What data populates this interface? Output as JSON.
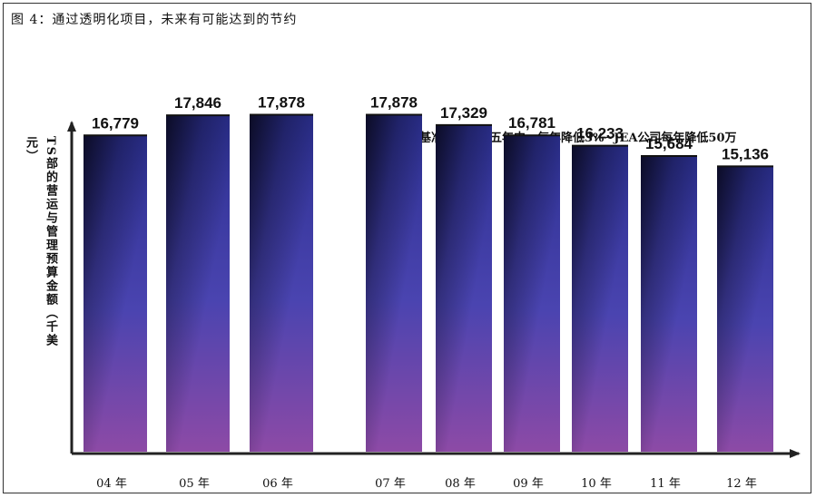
{
  "figure": {
    "title": "图 4：通过透明化项目，未来有可能达到的节约",
    "annotation": "基准要求：在五年中，每年降低3%~JEA公司每年降低50万"
  },
  "chart_data": {
    "type": "bar",
    "title": "图 4：通过透明化项目，未来有可能达到的节约",
    "ylabel": "TS部的营运与管理预算金额（千美元）",
    "xlabel": "",
    "categories": [
      "04 年",
      "05 年",
      "06 年",
      "07 年",
      "08 年",
      "09 年",
      "10 年",
      "11 年",
      "12 年"
    ],
    "value_labels": [
      "16,779",
      "17,846",
      "17,878",
      "17,878",
      "17,329",
      "16,781",
      "16,233",
      "15,684",
      "15,136"
    ],
    "values": [
      16779,
      17846,
      17878,
      17878,
      17329,
      16781,
      16233,
      15684,
      15136
    ],
    "ylim": [
      0,
      23000
    ],
    "grid": false,
    "colors": {
      "bar_top": "#2a2f8a",
      "bar_bottom": "#8a4aa8",
      "bar_dark_edge": "#14143a",
      "axis": "#222222"
    }
  }
}
